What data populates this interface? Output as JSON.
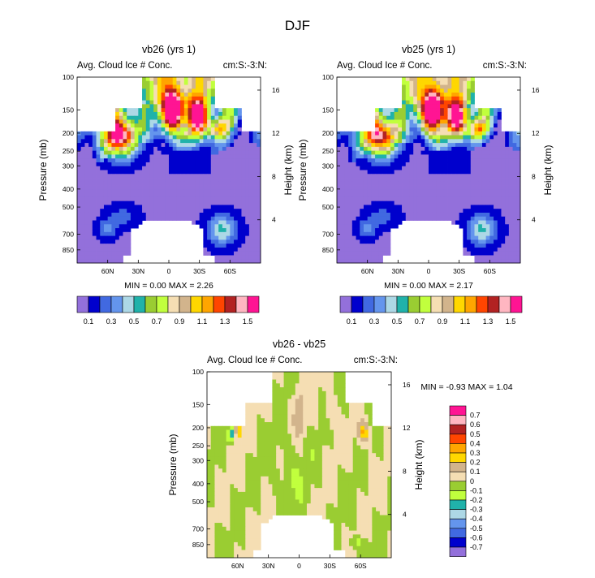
{
  "page_title": "DJF",
  "colors": {
    "contour": [
      "#9370db",
      "#0000cd",
      "#4169e1",
      "#6495ed",
      "#add8e6",
      "#20b2aa",
      "#9acd32",
      "#c1ff3d",
      "#f5deb3",
      "#d2b48c",
      "#ffd700",
      "#ffa500",
      "#ff4500",
      "#b22222",
      "#ffb6c1",
      "#ff1493"
    ],
    "diff": [
      "#9370db",
      "#0000cd",
      "#4169e1",
      "#6495ed",
      "#add8e6",
      "#20b2aa",
      "#c1ff3d",
      "#9acd32",
      "#f5deb3",
      "#d2b48c",
      "#ffd700",
      "#ffa500",
      "#ff4500",
      "#b22222",
      "#ffb6c1",
      "#ff1493"
    ]
  },
  "panels": [
    {
      "id": "vb26",
      "title": "vb26 (yrs 1)",
      "left_label": "Avg. Cloud Ice # Conc.",
      "right_label": "cm:S:-3:N:",
      "y_label": "Pressure (mb)",
      "y2_label": "Height (km)",
      "min_max": "MIN =   0.00   MAX =    2.26",
      "labelbar": [
        "0.1",
        "0.3",
        "0.5",
        "0.7",
        "0.9",
        "1.1",
        "1.3",
        "1.5"
      ]
    },
    {
      "id": "vb25",
      "title": "vb25 (yrs 1)",
      "left_label": "Avg. Cloud Ice # Conc.",
      "right_label": "cm:S:-3:N:",
      "y_label": "Pressure (mb)",
      "y2_label": "Height (km)",
      "min_max": "MIN =   0.00   MAX =    2.17",
      "labelbar": [
        "0.1",
        "0.3",
        "0.5",
        "0.7",
        "0.9",
        "1.1",
        "1.3",
        "1.5"
      ]
    },
    {
      "id": "diff",
      "title": "vb26 - vb25",
      "left_label": "Avg. Cloud Ice # Conc.",
      "right_label": "cm:S:-3:N:",
      "y_label": "Pressure (mb)",
      "y2_label": "Height (km)",
      "min_max": "MIN =  -0.93   MAX =    1.04",
      "labelbar": [
        "0.7",
        "0.6",
        "0.5",
        "0.4",
        "0.3",
        "0.2",
        "0.1",
        "0",
        "-0.1",
        "-0.2",
        "-0.3",
        "-0.4",
        "-0.5",
        "-0.6",
        "-0.7"
      ]
    }
  ],
  "chart_data": [
    {
      "type": "heatmap",
      "title": "vb26 (yrs 1)",
      "xlabel": "",
      "ylabel": "Pressure (mb)",
      "y2label": "Height (km)",
      "x_ticks": [
        "60N",
        "30N",
        "0",
        "30S",
        "60S"
      ],
      "x_tick_values": [
        60,
        30,
        0,
        -30,
        -60
      ],
      "xlim": [
        90,
        -90
      ],
      "y_ticks": [
        "100",
        "150",
        "200",
        "250",
        "300",
        "400",
        "500",
        "700",
        "850"
      ],
      "y_tick_values": [
        100,
        150,
        200,
        250,
        300,
        400,
        500,
        700,
        850
      ],
      "ylim": [
        100,
        1000
      ],
      "y2_ticks": [
        "16",
        "12",
        "8",
        "4"
      ],
      "y2_tick_values": [
        16,
        12,
        8,
        4
      ],
      "contour_levels": [
        0.1,
        0.2,
        0.3,
        0.4,
        0.5,
        0.6,
        0.7,
        0.8,
        0.9,
        1.0,
        1.1,
        1.2,
        1.3,
        1.4,
        1.5
      ],
      "min": 0.0,
      "max": 2.26
    },
    {
      "type": "heatmap",
      "title": "vb25 (yrs 1)",
      "xlabel": "",
      "ylabel": "Pressure (mb)",
      "y2label": "Height (km)",
      "x_ticks": [
        "60N",
        "30N",
        "0",
        "30S",
        "60S"
      ],
      "x_tick_values": [
        60,
        30,
        0,
        -30,
        -60
      ],
      "xlim": [
        90,
        -90
      ],
      "y_ticks": [
        "100",
        "150",
        "200",
        "250",
        "300",
        "400",
        "500",
        "700",
        "850"
      ],
      "y_tick_values": [
        100,
        150,
        200,
        250,
        300,
        400,
        500,
        700,
        850
      ],
      "ylim": [
        100,
        1000
      ],
      "y2_ticks": [
        "16",
        "12",
        "8",
        "4"
      ],
      "y2_tick_values": [
        16,
        12,
        8,
        4
      ],
      "contour_levels": [
        0.1,
        0.2,
        0.3,
        0.4,
        0.5,
        0.6,
        0.7,
        0.8,
        0.9,
        1.0,
        1.1,
        1.2,
        1.3,
        1.4,
        1.5
      ],
      "min": 0.0,
      "max": 2.17
    },
    {
      "type": "heatmap",
      "title": "vb26 - vb25",
      "xlabel": "",
      "ylabel": "Pressure (mb)",
      "y2label": "Height (km)",
      "x_ticks": [
        "60N",
        "30N",
        "0",
        "30S",
        "60S"
      ],
      "x_tick_values": [
        60,
        30,
        0,
        -30,
        -60
      ],
      "xlim": [
        90,
        -90
      ],
      "y_ticks": [
        "100",
        "150",
        "200",
        "250",
        "300",
        "400",
        "500",
        "700",
        "850"
      ],
      "y_tick_values": [
        100,
        150,
        200,
        250,
        300,
        400,
        500,
        700,
        850
      ],
      "ylim": [
        100,
        1000
      ],
      "y2_ticks": [
        "16",
        "12",
        "8",
        "4"
      ],
      "y2_tick_values": [
        16,
        12,
        8,
        4
      ],
      "contour_levels": [
        -0.7,
        -0.6,
        -0.5,
        -0.4,
        -0.3,
        -0.2,
        -0.1,
        0,
        0.1,
        0.2,
        0.3,
        0.4,
        0.5,
        0.6,
        0.7
      ],
      "min": -0.93,
      "max": 1.04
    }
  ]
}
